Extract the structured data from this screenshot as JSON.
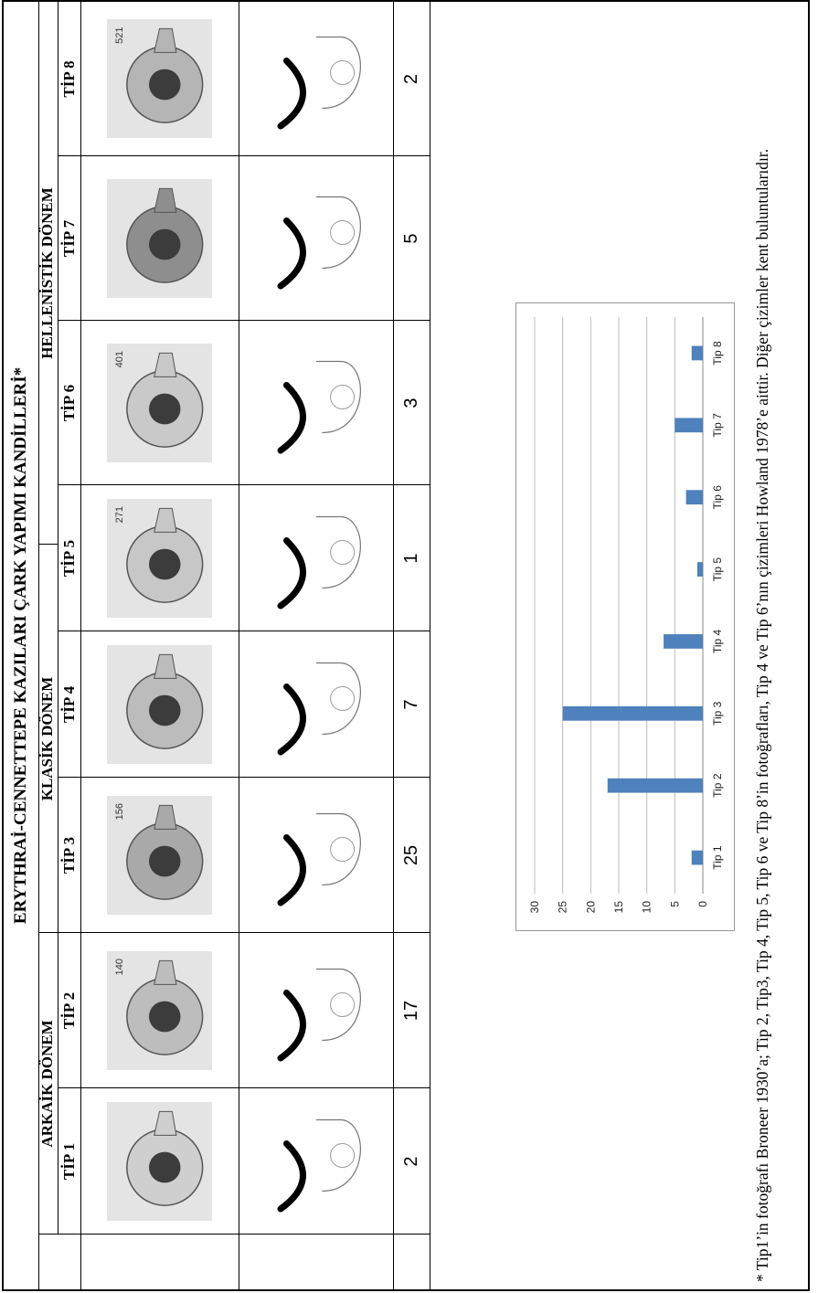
{
  "table": {
    "title": "ERYTHRAİ-CENNETTEPE KAZILARI ÇARK YAPIMI KANDİLLERİ*",
    "periods": [
      {
        "label": "ARKAİK DÖNEM"
      },
      {
        "label": "KLASİK DÖNEM"
      },
      {
        "label": "HELLENİSTİK DÖNEM"
      }
    ],
    "types": [
      {
        "label": "TİP 1",
        "count": "2"
      },
      {
        "label": "TİP 2",
        "count": "17"
      },
      {
        "label": "TİP 3",
        "count": "25"
      },
      {
        "label": "TİP 4",
        "count": "7"
      },
      {
        "label": "TİP 5",
        "count": "1"
      },
      {
        "label": "TİP 6",
        "count": "3"
      },
      {
        "label": "TİP 7",
        "count": "5"
      },
      {
        "label": "TİP 8",
        "count": "2"
      }
    ],
    "photo_numbers": [
      "",
      "140",
      "156",
      "",
      "271",
      "401",
      "",
      "521"
    ]
  },
  "footnote": "* Tip1’in fotoğrafı Broneer 1930’a; Tip 2, Tip3, Tip 4, Tip 5, Tip 6 ve Tip 8’in fotoğrafları, Tip 4 ve Tip 6’nın çizimleri Howland 1978’e aittir. Diğer çizimler kent buluntularıdır.",
  "chart_data": {
    "type": "bar",
    "categories": [
      "Tip 1",
      "Tip 2",
      "Tip 3",
      "Tip 4",
      "Tip 5",
      "Tip 6",
      "Tip 7",
      "Tip 8"
    ],
    "values": [
      2,
      17,
      25,
      7,
      1,
      3,
      5,
      2
    ],
    "ylim": [
      0,
      30
    ],
    "yticks": [
      0,
      5,
      10,
      15,
      20,
      25,
      30
    ],
    "grid": true,
    "bar_color": "#4f81bd",
    "title": "",
    "xlabel": "",
    "ylabel": ""
  }
}
